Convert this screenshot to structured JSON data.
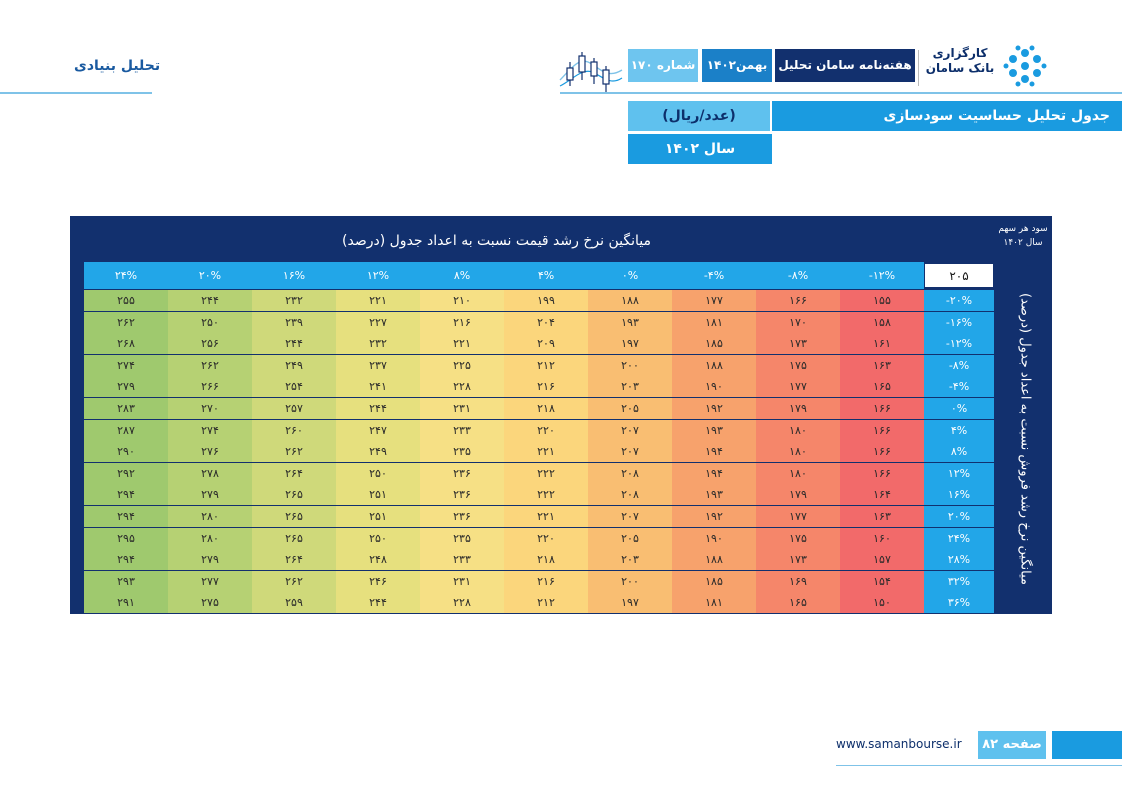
{
  "header": {
    "section_label": "تحلیل بنیادی",
    "brand_line1": "کارگزاری",
    "brand_line2": "بانک سامان",
    "pill_weekly": "هفته‌نامه سامان تحلیل",
    "pill_month": "بهمن۱۴۰۲",
    "pill_issue": "شماره ۱۷۰",
    "accent_color": "#1a9be0",
    "dark_color": "#12306e"
  },
  "title": {
    "main": "جدول تحلیل حساسیت سودسازی",
    "unit": "(عدد/ریال)",
    "year": "سال ۱۴۰۲"
  },
  "table": {
    "top_title": "میانگین نرخ رشد قیمت نسبت به اعداد جدول (درصد)",
    "corner_line1": "سود هر سهم",
    "corner_line2": "سال ۱۴۰۲",
    "side_title": "میانگین نرخ رشد فروش نسبت به اعداد جدول (درصد)",
    "base_value": "۲۰۵",
    "col_headers": [
      "-۱۲%",
      "-۸%",
      "-۴%",
      "۰%",
      "۴%",
      "۸%",
      "۱۲%",
      "۱۶%",
      "۲۰%",
      "۲۴%"
    ],
    "row_headers": [
      "-۲۰%",
      "-۱۶%",
      "-۱۲%",
      "-۸%",
      "-۴%",
      "۰%",
      "۴%",
      "۸%",
      "۱۲%",
      "۱۶%",
      "۲۰%",
      "۲۴%",
      "۲۸%",
      "۳۲%",
      "۳۶%"
    ],
    "rows": [
      [
        "۱۵۵",
        "۱۶۶",
        "۱۷۷",
        "۱۸۸",
        "۱۹۹",
        "۲۱۰",
        "۲۲۱",
        "۲۳۲",
        "۲۴۴",
        "۲۵۵"
      ],
      [
        "۱۵۸",
        "۱۷۰",
        "۱۸۱",
        "۱۹۳",
        "۲۰۴",
        "۲۱۶",
        "۲۲۷",
        "۲۳۹",
        "۲۵۰",
        "۲۶۲"
      ],
      [
        "۱۶۱",
        "۱۷۳",
        "۱۸۵",
        "۱۹۷",
        "۲۰۹",
        "۲۲۱",
        "۲۳۲",
        "۲۴۴",
        "۲۵۶",
        "۲۶۸"
      ],
      [
        "۱۶۳",
        "۱۷۵",
        "۱۸۸",
        "۲۰۰",
        "۲۱۲",
        "۲۲۵",
        "۲۳۷",
        "۲۴۹",
        "۲۶۲",
        "۲۷۴"
      ],
      [
        "۱۶۵",
        "۱۷۷",
        "۱۹۰",
        "۲۰۳",
        "۲۱۶",
        "۲۲۸",
        "۲۴۱",
        "۲۵۴",
        "۲۶۶",
        "۲۷۹"
      ],
      [
        "۱۶۶",
        "۱۷۹",
        "۱۹۲",
        "۲۰۵",
        "۲۱۸",
        "۲۳۱",
        "۲۴۴",
        "۲۵۷",
        "۲۷۰",
        "۲۸۳"
      ],
      [
        "۱۶۶",
        "۱۸۰",
        "۱۹۳",
        "۲۰۷",
        "۲۲۰",
        "۲۳۳",
        "۲۴۷",
        "۲۶۰",
        "۲۷۴",
        "۲۸۷"
      ],
      [
        "۱۶۶",
        "۱۸۰",
        "۱۹۴",
        "۲۰۷",
        "۲۲۱",
        "۲۳۵",
        "۲۴۹",
        "۲۶۲",
        "۲۷۶",
        "۲۹۰"
      ],
      [
        "۱۶۶",
        "۱۸۰",
        "۱۹۴",
        "۲۰۸",
        "۲۲۲",
        "۲۳۶",
        "۲۵۰",
        "۲۶۴",
        "۲۷۸",
        "۲۹۲"
      ],
      [
        "۱۶۴",
        "۱۷۹",
        "۱۹۳",
        "۲۰۸",
        "۲۲۲",
        "۲۳۶",
        "۲۵۱",
        "۲۶۵",
        "۲۷۹",
        "۲۹۴"
      ],
      [
        "۱۶۳",
        "۱۷۷",
        "۱۹۲",
        "۲۰۷",
        "۲۲۱",
        "۲۳۶",
        "۲۵۱",
        "۲۶۵",
        "۲۸۰",
        "۲۹۴"
      ],
      [
        "۱۶۰",
        "۱۷۵",
        "۱۹۰",
        "۲۰۵",
        "۲۲۰",
        "۲۳۵",
        "۲۵۰",
        "۲۶۵",
        "۲۸۰",
        "۲۹۵"
      ],
      [
        "۱۵۷",
        "۱۷۳",
        "۱۸۸",
        "۲۰۳",
        "۲۱۸",
        "۲۳۳",
        "۲۴۸",
        "۲۶۴",
        "۲۷۹",
        "۲۹۴"
      ],
      [
        "۱۵۴",
        "۱۶۹",
        "۱۸۵",
        "۲۰۰",
        "۲۱۶",
        "۲۳۱",
        "۲۴۶",
        "۲۶۲",
        "۲۷۷",
        "۲۹۳"
      ],
      [
        "۱۵۰",
        "۱۶۵",
        "۱۸۱",
        "۱۹۷",
        "۲۱۲",
        "۲۲۸",
        "۲۴۴",
        "۲۵۹",
        "۲۷۵",
        "۲۹۱"
      ]
    ],
    "heat_colors": [
      "#f26a6a",
      "#f5866a",
      "#f7a26c",
      "#f9be72",
      "#fbd67c",
      "#f6e085",
      "#e6e07e",
      "#cfd97a",
      "#b6d173",
      "#9fc96e"
    ]
  },
  "footer": {
    "url": "www.samanbourse.ir",
    "page": "صفحه ۸۲"
  }
}
